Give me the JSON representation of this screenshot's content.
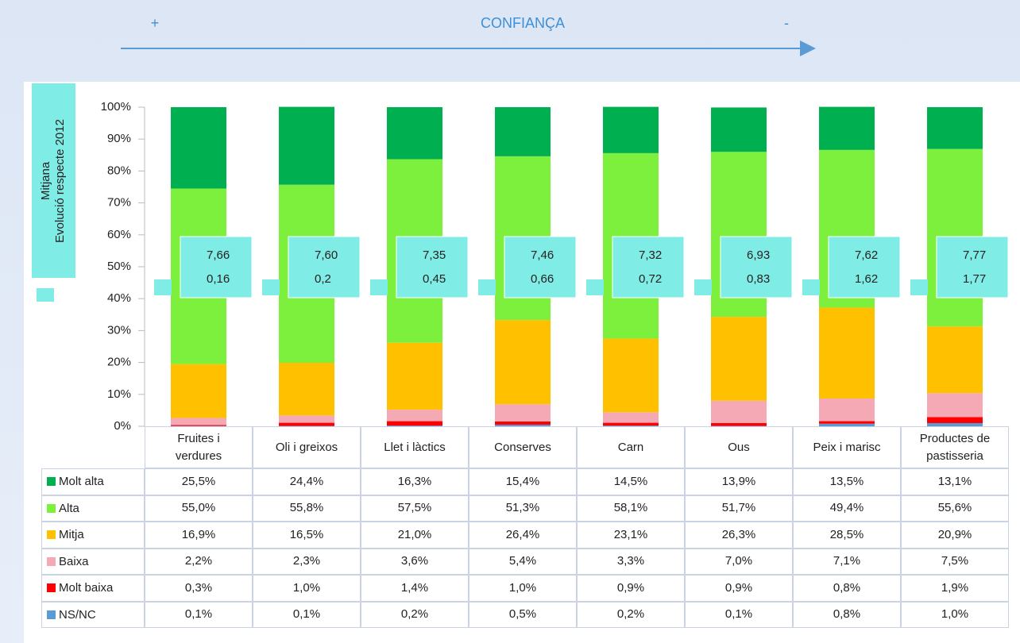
{
  "header": {
    "plus": "+",
    "title": "CONFIANÇA",
    "minus": "-"
  },
  "legend_box": {
    "mean_label": "Mitjana",
    "evolution_label": "Evolució respecte 2012"
  },
  "chart_data": {
    "type": "stacked_bar",
    "categories": [
      "Fruites i verdures",
      "Oli i greixos",
      "Llet i làctics",
      "Conserves",
      "Carn",
      "Ous",
      "Peix i marisc",
      "Productes de pastisseria"
    ],
    "series": [
      {
        "name": "Molt alta",
        "color": "#00b050",
        "values": [
          25.5,
          24.4,
          16.3,
          15.4,
          14.5,
          13.9,
          13.5,
          13.1
        ],
        "value_labels": [
          "25,5%",
          "24,4%",
          "16,3%",
          "15,4%",
          "14,5%",
          "13,9%",
          "13,5%",
          "13,1%"
        ]
      },
      {
        "name": "Alta",
        "color": "#7cf03c",
        "values": [
          55.0,
          55.8,
          57.5,
          51.3,
          58.1,
          51.7,
          49.4,
          55.6
        ],
        "value_labels": [
          "55,0%",
          "55,8%",
          "57,5%",
          "51,3%",
          "58,1%",
          "51,7%",
          "49,4%",
          "55,6%"
        ]
      },
      {
        "name": "Mitja",
        "color": "#ffc000",
        "values": [
          16.9,
          16.5,
          21.0,
          26.4,
          23.1,
          26.3,
          28.5,
          20.9
        ],
        "value_labels": [
          "16,9%",
          "16,5%",
          "21,0%",
          "26,4%",
          "23,1%",
          "26,3%",
          "28,5%",
          "20,9%"
        ]
      },
      {
        "name": "Baixa",
        "color": "#f4a9b4",
        "values": [
          2.2,
          2.3,
          3.6,
          5.4,
          3.3,
          7.0,
          7.1,
          7.5
        ],
        "value_labels": [
          "2,2%",
          "2,3%",
          "3,6%",
          "5,4%",
          "3,3%",
          "7,0%",
          "7,1%",
          "7,5%"
        ]
      },
      {
        "name": "Molt baixa",
        "color": "#ff0000",
        "values": [
          0.3,
          1.0,
          1.4,
          1.0,
          0.9,
          0.9,
          0.8,
          1.9
        ],
        "value_labels": [
          "0,3%",
          "1,0%",
          "1,4%",
          "1,0%",
          "0,9%",
          "0,9%",
          "0,8%",
          "1,9%"
        ]
      },
      {
        "name": "NS/NC",
        "color": "#5b9bd5",
        "values": [
          0.1,
          0.1,
          0.2,
          0.5,
          0.2,
          0.1,
          0.8,
          1.0
        ],
        "value_labels": [
          "0,1%",
          "0,1%",
          "0,2%",
          "0,5%",
          "0,2%",
          "0,1%",
          "0,8%",
          "1,0%"
        ]
      }
    ],
    "means": {
      "values": [
        7.66,
        7.6,
        7.35,
        7.46,
        7.32,
        6.93,
        7.62,
        7.77
      ],
      "value_labels": [
        "7,66",
        "7,60",
        "7,35",
        "7,46",
        "7,32",
        "6,93",
        "7,62",
        "7,77"
      ]
    },
    "evolution": {
      "values": [
        0.16,
        0.2,
        0.45,
        0.66,
        0.72,
        0.83,
        1.62,
        1.77
      ],
      "value_labels": [
        "0,16",
        "0,2",
        "0,45",
        "0,66",
        "0,72",
        "0,83",
        "1,62",
        "1,77"
      ]
    },
    "ylim": [
      0,
      100
    ],
    "yticks": [
      {
        "value": 0,
        "label": "0%"
      },
      {
        "value": 10,
        "label": "10%"
      },
      {
        "value": 20,
        "label": "20%"
      },
      {
        "value": 30,
        "label": "30%"
      },
      {
        "value": 40,
        "label": "40%"
      },
      {
        "value": 50,
        "label": "50%"
      },
      {
        "value": 60,
        "label": "60%"
      },
      {
        "value": 70,
        "label": "70%"
      },
      {
        "value": 80,
        "label": "80%"
      },
      {
        "value": 90,
        "label": "90%"
      },
      {
        "value": 100,
        "label": "100%"
      }
    ]
  }
}
